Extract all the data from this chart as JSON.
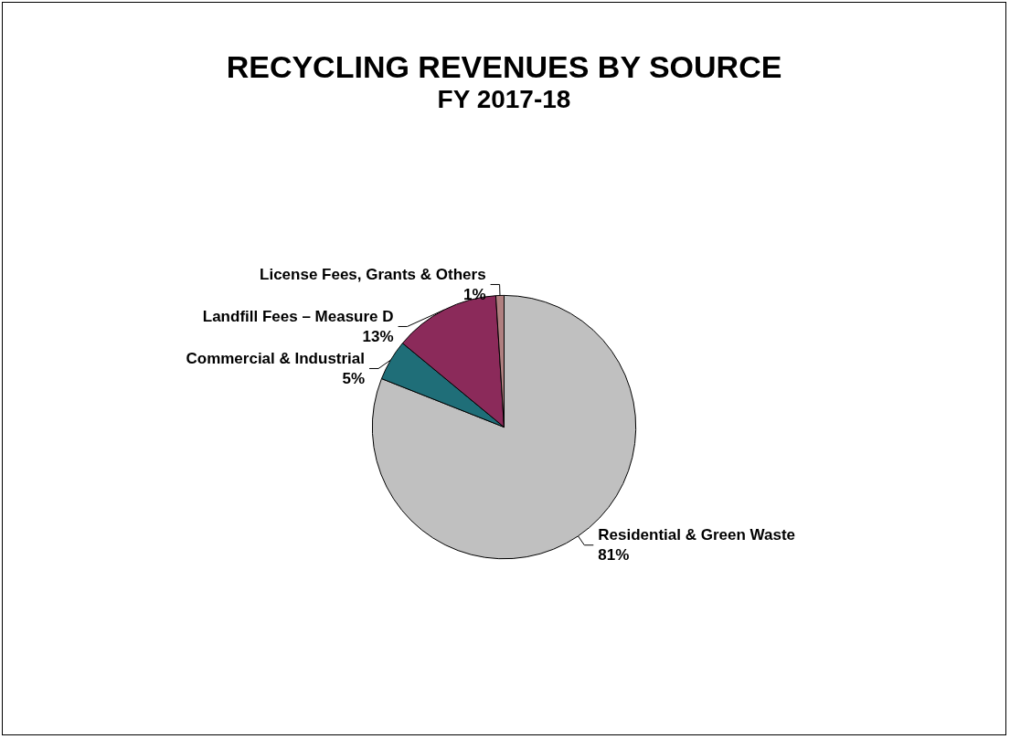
{
  "chart_data": {
    "type": "pie",
    "title": "RECYCLING REVENUES BY SOURCE",
    "subtitle": "FY 2017-18",
    "categories": [
      "Residential & Green Waste",
      "Commercial & Industrial",
      "Landfill Fees – Measure D",
      "License Fees, Grants & Others"
    ],
    "values": [
      81,
      5,
      13,
      1
    ],
    "value_labels": [
      "81%",
      "5%",
      "13%",
      "1%"
    ],
    "colors": [
      "#c0c0c0",
      "#1f6e78",
      "#8b2a5a",
      "#b08080"
    ],
    "legend": false
  }
}
